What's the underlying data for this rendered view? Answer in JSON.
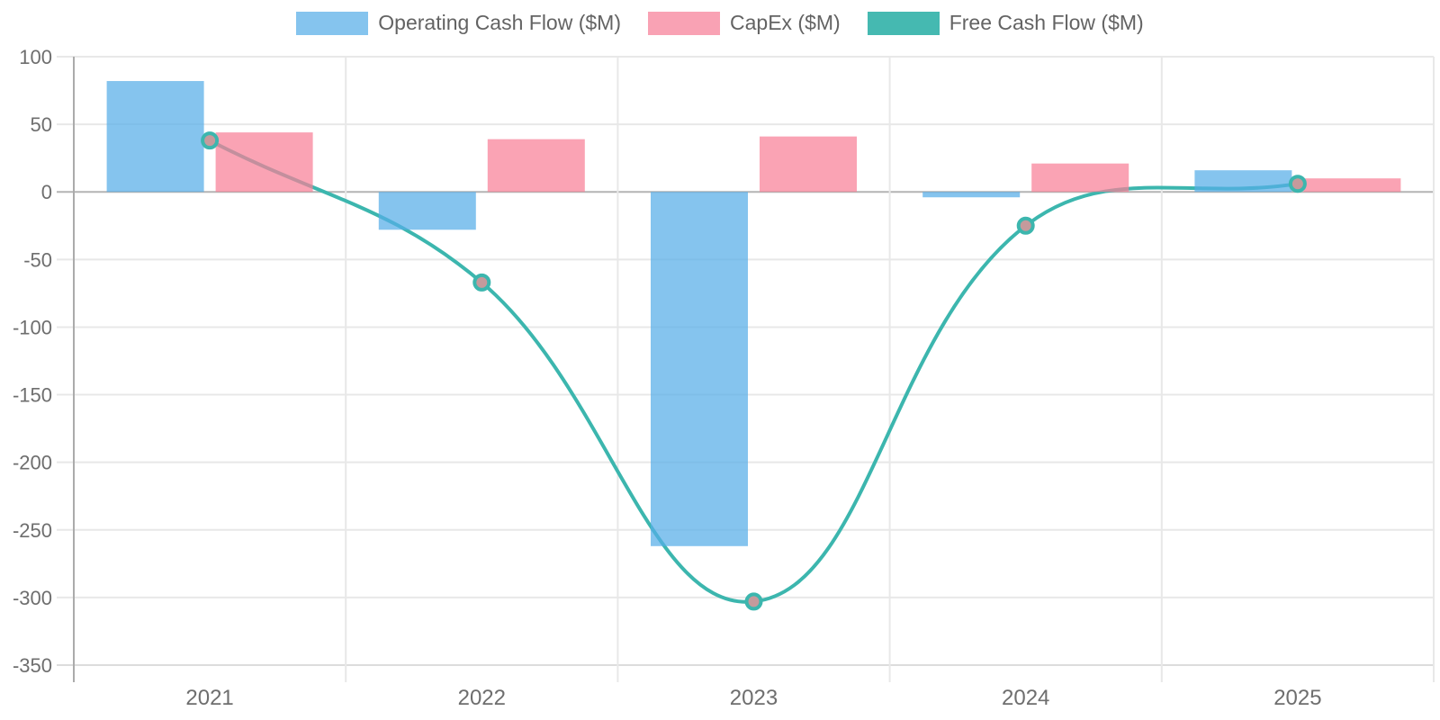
{
  "chart_data": {
    "type": "combo_bar_line",
    "title": "",
    "categories": [
      "2021",
      "2022",
      "2023",
      "2024",
      "2025"
    ],
    "series": [
      {
        "name": "Operating Cash Flow ($M)",
        "type": "bar",
        "color": "#56ADE7",
        "legend_color": "#85C4EE",
        "values": [
          82,
          -28,
          -262,
          -4,
          16
        ]
      },
      {
        "name": "CapEx ($M)",
        "type": "bar",
        "color": "#F87F97",
        "legend_color": "#F9A2B4",
        "values": [
          44,
          39,
          41,
          21,
          10
        ]
      },
      {
        "name": "Free Cash Flow ($M)",
        "type": "line",
        "color": "#3CB6AE",
        "point_fill": "#C59A9C",
        "legend_color": "#45B9B1",
        "values": [
          38,
          -67,
          -303,
          -25,
          6
        ]
      }
    ],
    "ylim": [
      -350,
      100
    ],
    "yticks": [
      100,
      50,
      0,
      -50,
      -100,
      -150,
      -200,
      -250,
      -300,
      -350
    ],
    "xlabel": "",
    "ylabel": "",
    "grid": true,
    "legend_position": "top",
    "line_tension": 0.4
  },
  "colors": {
    "background": "#FFFFFF",
    "grid": "#E8E8E8",
    "zero_line": "#B4B4B4",
    "axis_line": "#ABABAB",
    "bottom_grid": "#DCDCDC",
    "tick_text": "#6E6E6E",
    "legend_text": "#636363"
  }
}
